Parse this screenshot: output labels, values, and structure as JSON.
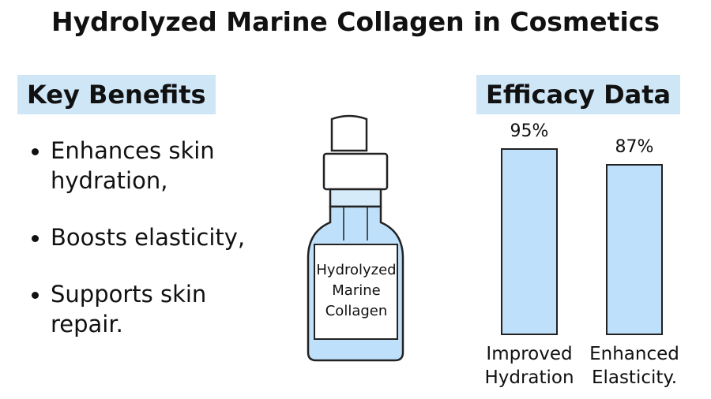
{
  "title": "Hydrolyzed Marine Collagen in Cosmetics",
  "benefits": {
    "heading": "Key Benefits",
    "items": [
      "Enhances skin hydration,",
      "Boosts elasticity,",
      "Supports skin repair."
    ]
  },
  "bottle": {
    "label": "Hydrolyzed Marine Collagen"
  },
  "chart_data": {
    "type": "bar",
    "title": "Efficacy Data",
    "categories": [
      "Improved Hydration",
      "Enhanced Elasticity."
    ],
    "values": [
      95,
      87
    ],
    "value_labels": [
      "95%",
      "87%"
    ],
    "color": "#bfe0fa"
  }
}
